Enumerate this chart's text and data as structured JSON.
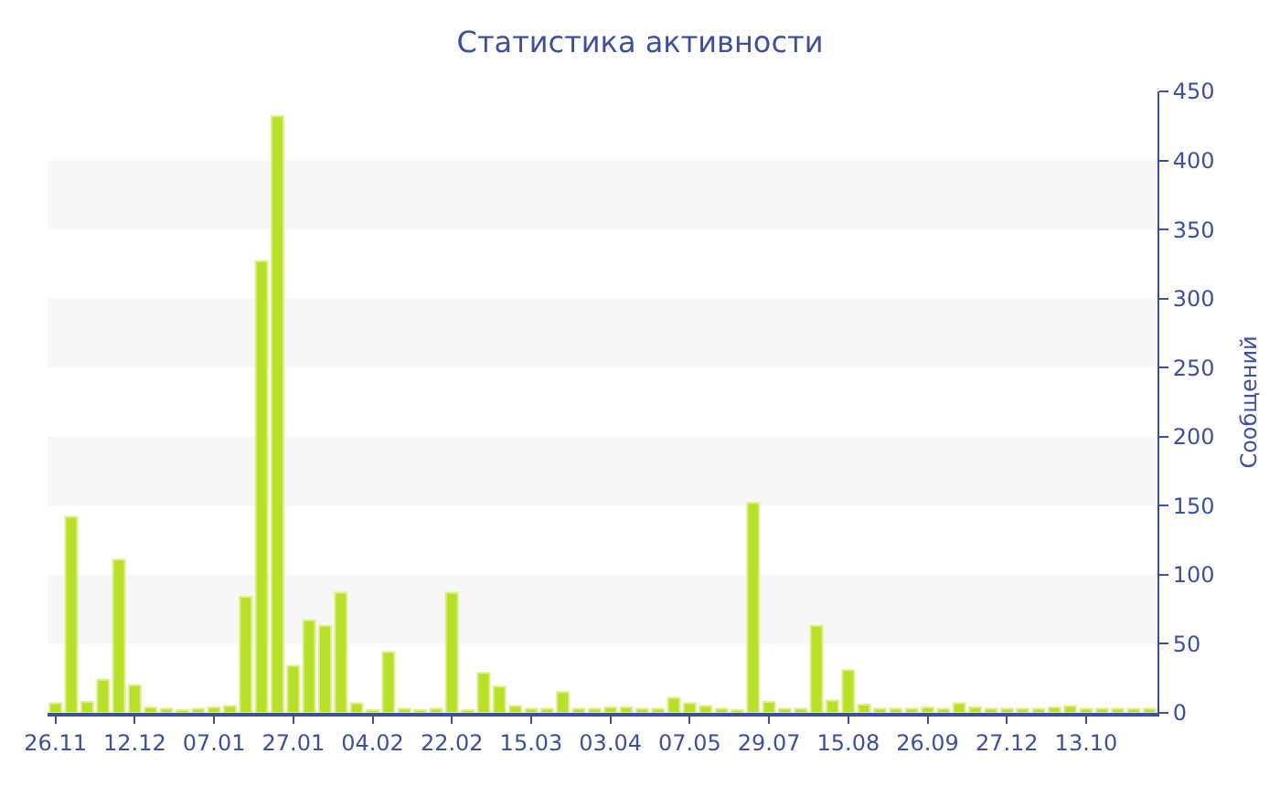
{
  "chart_data": {
    "type": "bar",
    "title": "Статистика активности",
    "ylabel": "Сообщений",
    "categories": [
      "26.11",
      null,
      null,
      null,
      null,
      "12.12",
      null,
      null,
      null,
      null,
      "07.01",
      null,
      null,
      null,
      null,
      "27.01",
      null,
      null,
      null,
      null,
      "04.02",
      null,
      null,
      null,
      null,
      "22.02",
      null,
      null,
      null,
      null,
      "15.03",
      null,
      null,
      null,
      null,
      "03.04",
      null,
      null,
      null,
      null,
      "07.05",
      null,
      null,
      null,
      null,
      "29.07",
      null,
      null,
      null,
      null,
      "15.08",
      null,
      null,
      null,
      null,
      "26.09",
      null,
      null,
      null,
      null,
      "27.12",
      null,
      null,
      null,
      null,
      "13.10",
      null,
      null,
      null,
      null
    ],
    "series": [
      {
        "color": "#b8e02a",
        "values": [
          7,
          142,
          8,
          24,
          111,
          20,
          4,
          3,
          2,
          3,
          4,
          5,
          84,
          327,
          432,
          34,
          67,
          63,
          87,
          7,
          2,
          44,
          3,
          2,
          3,
          87,
          2,
          29,
          19,
          5,
          3,
          3,
          15,
          3,
          3,
          4,
          4,
          3,
          3,
          11,
          7,
          5,
          3,
          2,
          152,
          8,
          3,
          3,
          63,
          9,
          31,
          6,
          3,
          3,
          3,
          4,
          3,
          7,
          4,
          3,
          3,
          3,
          3,
          4,
          5,
          3,
          3,
          3,
          3,
          3
        ]
      }
    ],
    "ylim": [
      0,
      450
    ],
    "yticks": [
      0,
      50,
      100,
      150,
      200,
      250,
      300,
      350,
      400,
      450
    ],
    "grid": false,
    "legend": false,
    "bands": [
      {
        "axis": "y",
        "from": 50,
        "to": 100,
        "color": "#f7f7f7"
      },
      {
        "axis": "y",
        "from": 150,
        "to": 200,
        "color": "#f7f7f7"
      },
      {
        "axis": "y",
        "from": 250,
        "to": 300,
        "color": "#f7f7f7"
      },
      {
        "axis": "y",
        "from": 350,
        "to": 400,
        "color": "#f7f7f7"
      }
    ]
  }
}
